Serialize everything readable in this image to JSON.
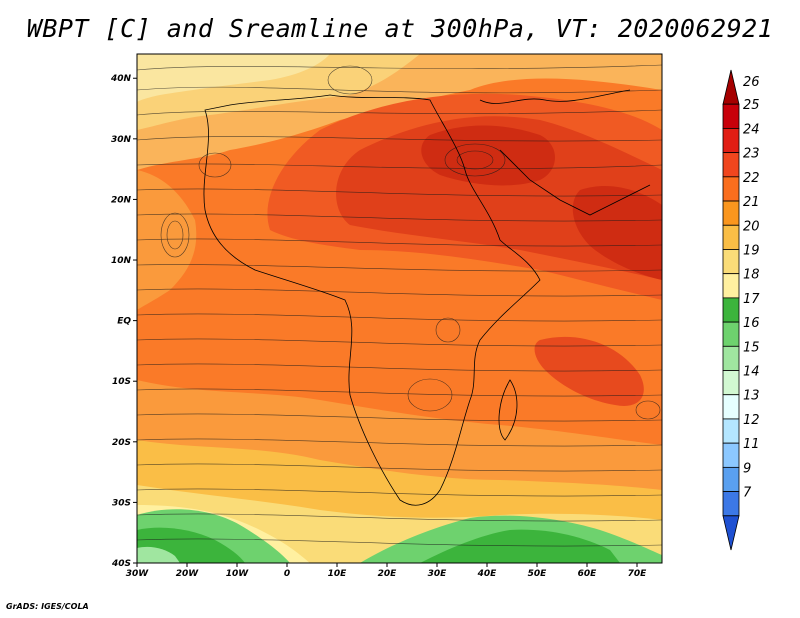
{
  "title": "WBPT [C] and Sreamline at 300hPa, VT: 2020062921",
  "credit": "GrADS: IGES/COLA",
  "map": {
    "lat_labels": [
      "40N",
      "30N",
      "20N",
      "10N",
      "EQ",
      "10S",
      "20S",
      "30S",
      "40S"
    ],
    "lon_labels": [
      "30W",
      "20W",
      "10W",
      "0",
      "10E",
      "20E",
      "30E",
      "40E",
      "50E",
      "60E",
      "70E"
    ],
    "lon_range": [
      -30,
      75
    ],
    "lat_range": [
      -40,
      44
    ]
  },
  "colorbar": {
    "labels": [
      "26",
      "25",
      "24",
      "23",
      "22",
      "21",
      "20",
      "19",
      "18",
      "17",
      "16",
      "15",
      "14",
      "13",
      "12",
      "11",
      "9",
      "7"
    ],
    "colors": [
      "#a50000",
      "#c8000a",
      "#e11e14",
      "#f0461e",
      "#fa6e1e",
      "#fa961e",
      "#fabe46",
      "#fadc78",
      "#fff0a0",
      "#3cb43c",
      "#6ed26e",
      "#a0e6a0",
      "#d2f8d2",
      "#e6ffff",
      "#b4e6ff",
      "#8cc8ff",
      "#5aa0f0",
      "#3c78e6",
      "#1e50d2"
    ]
  }
}
